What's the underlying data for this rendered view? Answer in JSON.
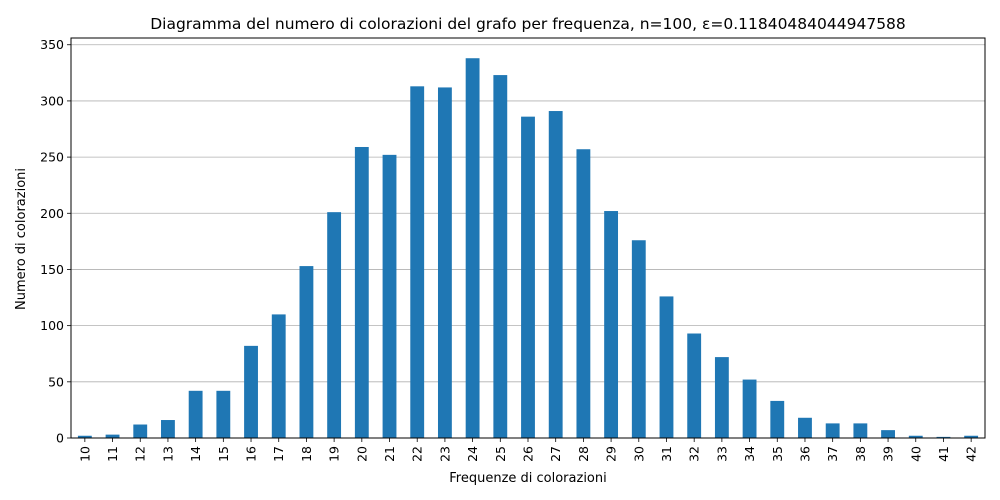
{
  "chart_data": {
    "type": "bar",
    "title": "Diagramma del numero di colorazioni del grafo per frequenza, n=100, ε=0.11840484044947588",
    "xlabel": "Frequenze di colorazioni",
    "ylabel": "Numero di colorazioni",
    "categories": [
      "10",
      "11",
      "12",
      "13",
      "14",
      "15",
      "16",
      "17",
      "18",
      "19",
      "20",
      "21",
      "22",
      "23",
      "24",
      "25",
      "26",
      "27",
      "28",
      "29",
      "30",
      "31",
      "32",
      "33",
      "34",
      "35",
      "36",
      "37",
      "38",
      "39",
      "40",
      "41",
      "42"
    ],
    "values": [
      2,
      3,
      12,
      16,
      42,
      42,
      82,
      110,
      153,
      201,
      259,
      252,
      313,
      312,
      338,
      323,
      286,
      291,
      257,
      202,
      176,
      126,
      93,
      72,
      52,
      33,
      18,
      13,
      13,
      7,
      2,
      1,
      2
    ],
    "ylim": [
      0,
      356
    ],
    "yticks": [
      0,
      50,
      100,
      150,
      200,
      250,
      300,
      350
    ],
    "grid": "y",
    "bar_color": "#1f77b4",
    "legend": "none"
  }
}
